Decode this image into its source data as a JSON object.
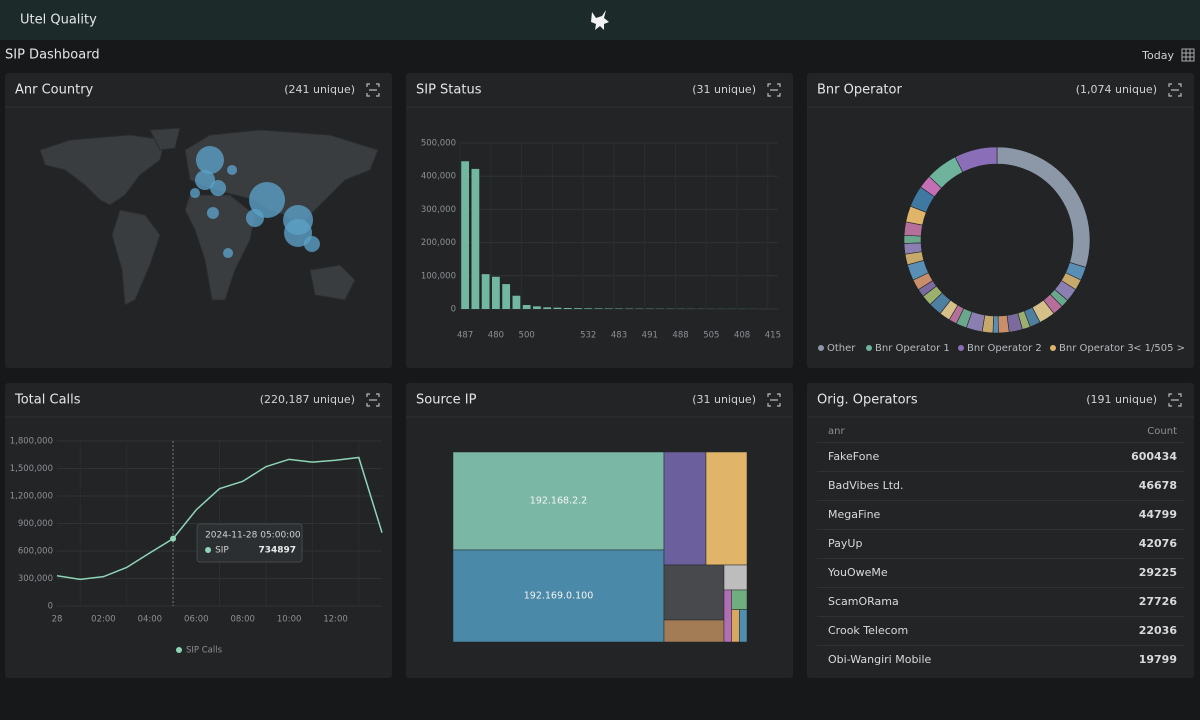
{
  "header": {
    "title": "Utel Quality"
  },
  "dashboard": {
    "title": "SIP Dashboard",
    "range": "Today"
  },
  "chart_data": [
    {
      "type": "map",
      "title": "Anr Country",
      "subtitle": "(241 unique)",
      "lon": [
        5.1,
        0,
        13.4,
        -10.3,
        8.2,
        27.8,
        63.8,
        51.4,
        95.7,
        95.7,
        110,
        23.7
      ],
      "lat": [
        62.1,
        46.8,
        40.7,
        36.9,
        21.7,
        54.5,
        31.6,
        17.8,
        16.3,
        6.4,
        -2,
        -8.9
      ],
      "values": [
        196,
        100,
        64,
        25,
        36,
        25,
        324,
        81,
        225,
        196,
        64,
        25
      ],
      "color": "#5b9fc6"
    },
    {
      "type": "bar",
      "title": "SIP Status",
      "subtitle": "(31 unique)",
      "categories": [
        "487",
        null,
        null,
        "480",
        null,
        null,
        "500",
        null,
        null,
        null,
        null,
        null,
        "532",
        null,
        null,
        "483",
        null,
        null,
        "491",
        null,
        null,
        "488",
        null,
        null,
        "505",
        null,
        null,
        "408",
        null,
        null,
        "415"
      ],
      "values": [
        445000,
        422000,
        105000,
        97000,
        75000,
        40000,
        12000,
        8000,
        5000,
        4000,
        3000,
        2500,
        2000,
        1800,
        1500,
        1300,
        1200,
        1000,
        900,
        800,
        700,
        600,
        500,
        450,
        400,
        350,
        300,
        250,
        200,
        150,
        100
      ],
      "color": "#72b8a0",
      "ylim": [
        0,
        500000
      ],
      "yticks": [
        0,
        {
          "value": 100000,
          "label": "100,000"
        },
        {
          "value": 200000,
          "label": "200,000"
        },
        {
          "value": 300000,
          "label": "300,000"
        },
        {
          "value": 400000,
          "label": "400,000"
        },
        {
          "value": 500000,
          "label": "500,000"
        }
      ],
      "grid": true
    },
    {
      "type": "donut",
      "title": "Bnr Operator",
      "subtitle": "(1,074 unique)",
      "categories": [
        "Other",
        null,
        null,
        null,
        null,
        null,
        null,
        null,
        null,
        null,
        null,
        null,
        null,
        null,
        null,
        null,
        null,
        null,
        null,
        null,
        null,
        null,
        null,
        null,
        null,
        null,
        "Bnr Operator 3",
        null,
        null,
        "Bnr Operator 1",
        "Bnr Operator 2"
      ],
      "values": [
        32,
        2.5,
        2,
        2.5,
        1.5,
        2,
        3,
        2,
        1.5,
        2.5,
        2,
        1,
        2,
        3,
        2,
        1.5,
        2,
        2.5,
        2,
        1.5,
        2,
        3,
        2,
        2,
        1.5,
        2.5,
        3,
        4,
        2.5,
        6,
        8
      ],
      "colors": [
        "#8c97a8",
        "#5a8fb5",
        "#c7a96b",
        "#8a7fb0",
        "#6aa88e",
        "#b56f9a",
        "#d6c08a",
        "#4f7fa0",
        "#9bb06f",
        "#7a6a9e",
        "#c98f6a",
        "#5a8fb5",
        "#c7a96b",
        "#8a7fb0",
        "#6aa88e",
        "#b56f9a",
        "#d6c08a",
        "#4f7fa0",
        "#9bb06f",
        "#7a6a9e",
        "#c98f6a",
        "#5a8fb5",
        "#c7a96b",
        "#8a7fb0",
        "#6aa88e",
        "#b56f9a",
        "#e0b56a",
        "#3f78a0",
        "#c46fb5",
        "#6fb39d",
        "#8a6fb8"
      ],
      "legend_page": "< 1/505 >"
    },
    {
      "type": "line",
      "title": "Total Calls",
      "subtitle": "(220,187 unique)",
      "categories": [
        "28",
        null,
        "02:00",
        null,
        "04:00",
        null,
        "06:00",
        null,
        "08:00",
        null,
        "10:00",
        null,
        "12:00",
        null,
        null
      ],
      "series": [
        {
          "name": "SIP Calls",
          "color": "#8fd4b6",
          "values": [
            330000,
            290000,
            320000,
            420000,
            580000,
            734897,
            1050000,
            1280000,
            1360000,
            1520000,
            1600000,
            1570000,
            1590000,
            1620000,
            800000
          ]
        }
      ],
      "ylim": [
        0,
        1800000
      ],
      "yticks": [
        0,
        {
          "value": 300000,
          "label": "300,000"
        },
        {
          "value": 600000,
          "label": "600,000"
        },
        {
          "value": 900000,
          "label": "900,000"
        },
        {
          "value": 1200000,
          "label": "1,200,000"
        },
        {
          "value": 1500000,
          "label": "1,500,000"
        },
        {
          "value": 1800000,
          "label": "1,800,000"
        }
      ],
      "grid": true,
      "tooltip": {
        "title": "2024-11-28 05:00:00",
        "label": "SIP"
      }
    },
    {
      "type": "treemap",
      "title": "Source IP",
      "subtitle": "(31 unique)",
      "categories": [
        "192.168.2.2",
        "192.169.0.100",
        null,
        null,
        null,
        null,
        null,
        null,
        null,
        null,
        null
      ],
      "values": [
        20678,
        19412,
        4746,
        4633,
        3300,
        1320,
        575,
        400,
        300,
        250,
        246
      ],
      "colors": [
        "#7ab8a5",
        "#4a89a8",
        "#6b5f9e",
        "#e0b56a",
        "#48494c",
        "#a37b55",
        "#bdbdbd",
        "#b06fb5",
        "#6fae7e",
        "#d9a75f",
        "#4f8fb0"
      ]
    }
  ],
  "orig_operators": {
    "title": "Orig. Operators",
    "subtitle": "(191 unique)",
    "columns": [
      "anr",
      "Count"
    ],
    "rows": [
      [
        "FakeFone",
        "600434"
      ],
      [
        "BadVibes Ltd.",
        "46678"
      ],
      [
        "MegaFine",
        "44799"
      ],
      [
        "PayUp",
        "42076"
      ],
      [
        "YouOweMe",
        "29225"
      ],
      [
        "ScamORama",
        "27726"
      ],
      [
        "Crook Telecom",
        "22036"
      ],
      [
        "Obi-Wangiri Mobile",
        "19799"
      ]
    ]
  }
}
